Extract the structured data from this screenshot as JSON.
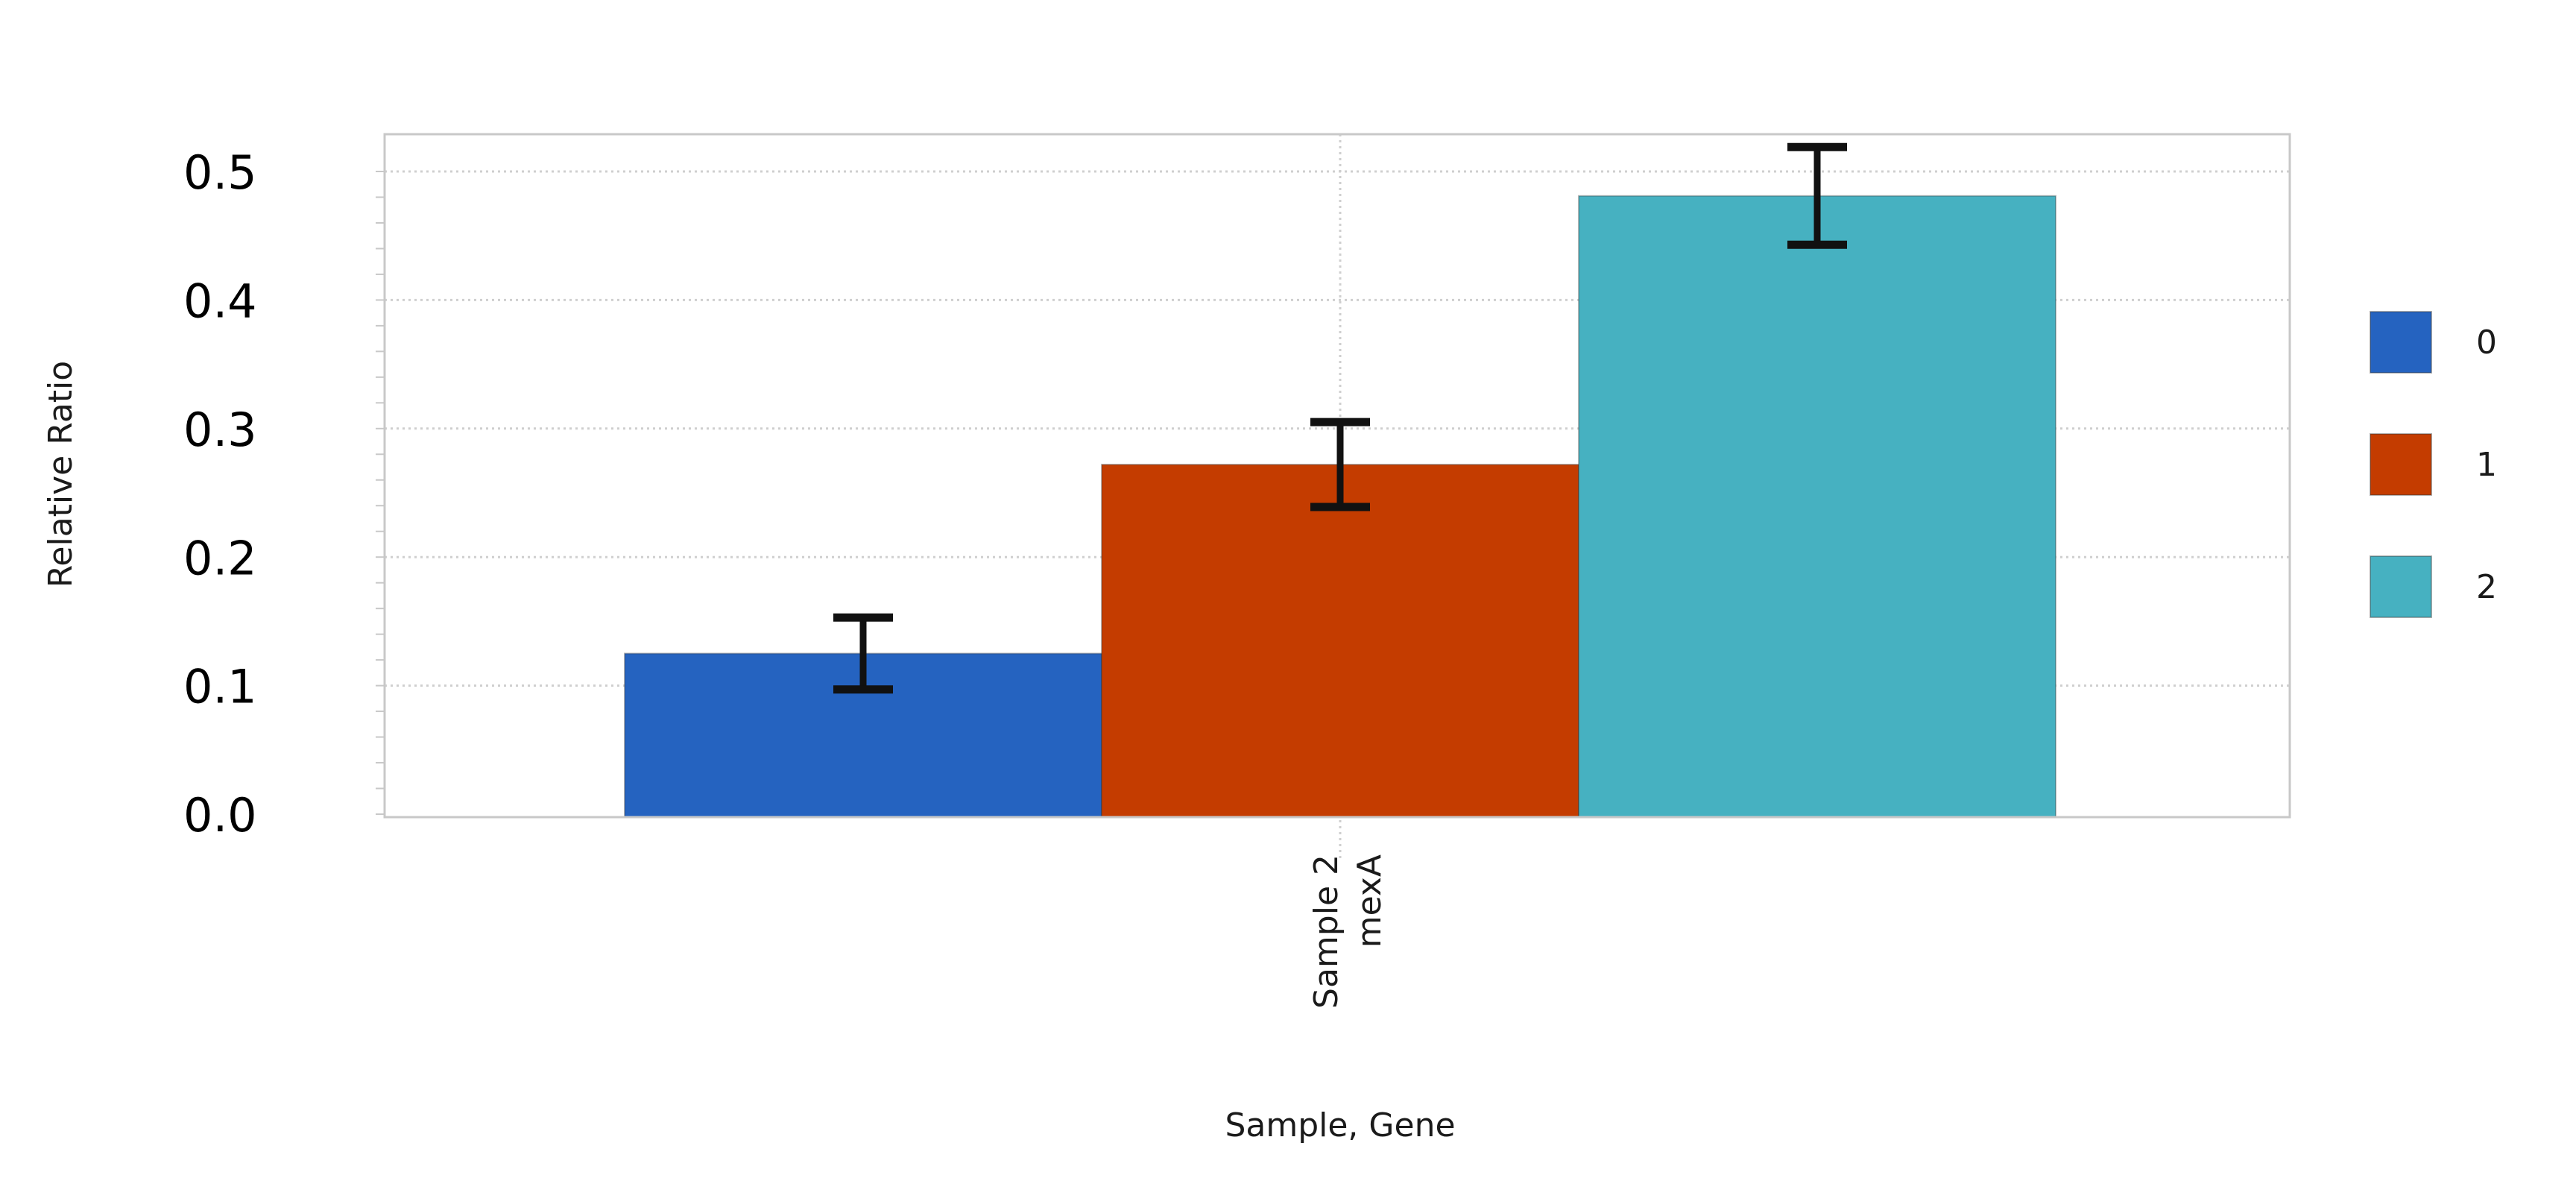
{
  "chart_data": {
    "type": "bar",
    "title": "",
    "xlabel": "Sample, Gene",
    "ylabel": "Relative Ratio",
    "categories": [
      {
        "lines": [
          "Sample 2",
          "mexA"
        ]
      }
    ],
    "series": [
      {
        "name": "0",
        "color": "#2563c0",
        "values": [
          0.125
        ],
        "error": [
          0.028
        ]
      },
      {
        "name": "1",
        "color": "#c43c00",
        "values": [
          0.272
        ],
        "error": [
          0.033
        ]
      },
      {
        "name": "2",
        "color": "#46b1c1",
        "values": [
          0.481
        ],
        "error": [
          0.038
        ]
      }
    ],
    "ylim": [
      0,
      0.52
    ],
    "yticks": [
      "0.0",
      "0.1",
      "0.2",
      "0.3",
      "0.4",
      "0.5"
    ],
    "ytick_values": [
      0,
      0.1,
      0.2,
      0.3,
      0.4,
      0.5
    ],
    "grid": true,
    "error_bars": true,
    "legend": "right"
  }
}
